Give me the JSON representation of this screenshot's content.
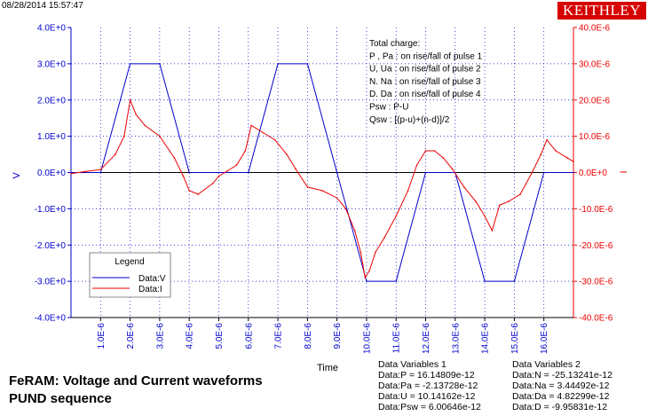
{
  "header": {
    "timestamp": "08/28/2014 15:57:47",
    "brand": "KEITHLEY"
  },
  "caption": {
    "line1": "FeRAM: Voltage and Current waveforms",
    "line2": "PUND sequence"
  },
  "annotation": [
    "Total charge:",
    "P , Pa  :  on rise/fall of pulse 1",
    "U, Ua   :  on rise/fall of pulse 2",
    "N. Na   :  on rise/fall of pulse 3",
    "D. Da   :  on rise/fall of pulse 4",
    "Psw :  P-U",
    "Qsw :  [(p-u)+(n-d)]/2"
  ],
  "legend": {
    "title": "Legend",
    "items": [
      {
        "label": "Data:V",
        "color": "#0000cc"
      },
      {
        "label": "Data:I",
        "color": "#ee0000"
      }
    ]
  },
  "data_variables": {
    "group1": {
      "title": "Data Variables 1",
      "lines": [
        "Data:P = 16.14809e-12",
        "Data:Pa = -2.13728e-12",
        "Data:U = 10.14162e-12",
        "Data:Psw = 6.00646e-12"
      ]
    },
    "group2": {
      "title": "Data Variables 2",
      "lines": [
        "Data:N = -25.13241e-12",
        "Data:Na = 3.44492e-12",
        "Data:Da = 4.82299e-12",
        "Data:D = -9.95831e-12"
      ]
    }
  },
  "chart_data": {
    "type": "line",
    "title": "",
    "xlabel": "Time",
    "ylabel": "V",
    "ylabel_right": "I",
    "xlim": [
      0,
      1.7e-05
    ],
    "ylim": [
      -4,
      4
    ],
    "ylim_right": [
      -4e-05,
      4e-05
    ],
    "x_ticks": [
      "1.0E-6",
      "2.0E-6",
      "3.0E-6",
      "4.0E-6",
      "5.0E-6",
      "6.0E-6",
      "7.0E-6",
      "8.0E-6",
      "9.0E-6",
      "10.0E-6",
      "11.0E-6",
      "12.0E-6",
      "13.0E-6",
      "14.0E-6",
      "15.0E-6",
      "16.0E-6"
    ],
    "y_ticks_left": [
      "4.0E+0",
      "3.0E+0",
      "2.0E+0",
      "1.0E+0",
      "0.0E+0",
      "-1.0E+0",
      "-2.0E+0",
      "-3.0E+0",
      "-4.0E+0"
    ],
    "y_ticks_right": [
      "40.0E-6",
      "30.0E-6",
      "20.0E-6",
      "10.0E-6",
      "0.0E+0",
      "-10.0E-6",
      "-20.0E-6",
      "-30.0E-6",
      "-40.0E-6"
    ],
    "grid": true,
    "legend_position": "bottom-left",
    "axis_colors": {
      "left": "#0000cc",
      "right": "#ee0000"
    },
    "series": [
      {
        "name": "Data:V",
        "axis": "left",
        "color": "#0000cc",
        "x": [
          0,
          1e-06,
          2e-06,
          3e-06,
          4e-06,
          6e-06,
          7e-06,
          8e-06,
          9e-06,
          1e-05,
          1.1e-05,
          1.2e-05,
          1.3e-05,
          1.4e-05,
          1.5e-05,
          1.6e-05,
          1.7e-05
        ],
        "values": [
          0,
          0,
          3.0,
          3.0,
          0,
          0,
          3.0,
          3.0,
          0,
          -3.0,
          -3.0,
          0,
          0,
          -3.0,
          -3.0,
          0,
          0
        ]
      },
      {
        "name": "Data:I",
        "axis": "right",
        "color": "#ee0000",
        "x": [
          0,
          5e-07,
          1e-06,
          1.5e-06,
          1.8e-06,
          2e-06,
          2.2e-06,
          2.5e-06,
          3e-06,
          3.5e-06,
          3.8e-06,
          4e-06,
          4.3e-06,
          4.8e-06,
          5e-06,
          5.3e-06,
          5.6e-06,
          5.9e-06,
          6.1e-06,
          6.5e-06,
          6.9e-06,
          7.3e-06,
          7.6e-06,
          8e-06,
          8.5e-06,
          9e-06,
          9.3e-06,
          9.6e-06,
          9.8e-06,
          9.95e-06,
          1.01e-05,
          1.03e-05,
          1.06e-05,
          1.1e-05,
          1.14e-05,
          1.17e-05,
          1.2e-05,
          1.23e-05,
          1.26e-05,
          1.29e-05,
          1.33e-05,
          1.37e-05,
          1.4e-05,
          1.425e-05,
          1.45e-05,
          1.48e-05,
          1.52e-05,
          1.56e-05,
          1.59e-05,
          1.61e-05,
          1.64e-05,
          1.68e-05,
          1.7e-05
        ],
        "values": [
          -3e-07,
          3e-07,
          8e-07,
          5e-06,
          1e-05,
          2e-05,
          1.6e-05,
          1.3e-05,
          1e-05,
          4e-06,
          -1e-06,
          -5e-06,
          -6e-06,
          -3e-06,
          -1e-06,
          5e-07,
          2e-06,
          6e-06,
          1.3e-05,
          1.1e-05,
          9e-06,
          5e-06,
          1e-06,
          -4e-06,
          -5e-06,
          -7e-06,
          -1e-05,
          -1.6e-05,
          -2.2e-05,
          -2.9e-05,
          -2.7e-05,
          -2.2e-05,
          -1.8e-05,
          -1.2e-05,
          -5e-06,
          2e-06,
          6e-06,
          6e-06,
          4e-06,
          1e-06,
          -4e-06,
          -8e-06,
          -1.2e-05,
          -1.6e-05,
          -9e-06,
          -8e-06,
          -6e-06,
          0.0,
          5e-06,
          9e-06,
          6e-06,
          4e-06,
          3e-06
        ]
      }
    ]
  }
}
